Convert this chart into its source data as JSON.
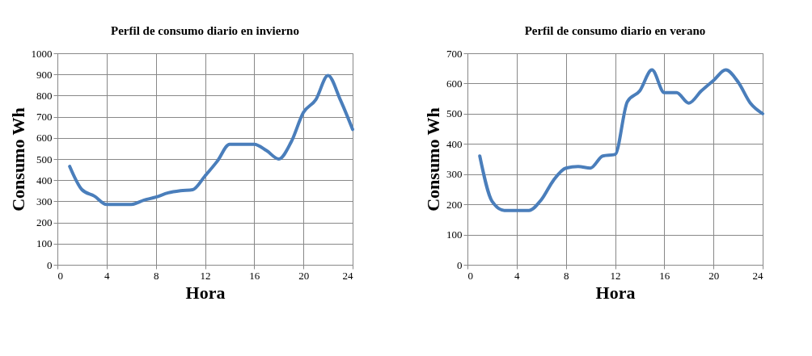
{
  "chart_data": [
    {
      "type": "line",
      "title": "Perfil de consumo diario en invierno",
      "xlabel": "Hora",
      "ylabel": "Consumo Wh",
      "x": [
        1,
        2,
        3,
        4,
        5,
        6,
        7,
        8,
        9,
        10,
        11,
        12,
        13,
        14,
        15,
        16,
        17,
        18,
        19,
        20,
        21,
        22,
        23,
        24
      ],
      "series": [
        {
          "color": "#4a7ebb",
          "values": [
            465,
            355,
            325,
            285,
            285,
            285,
            305,
            320,
            340,
            350,
            355,
            420,
            490,
            570,
            570,
            570,
            540,
            500,
            580,
            720,
            780,
            895,
            780,
            640
          ]
        }
      ],
      "xlim": [
        0,
        24
      ],
      "xticks": [
        0,
        4,
        8,
        12,
        16,
        20,
        24
      ],
      "ylim": [
        0,
        1000
      ],
      "yticks": [
        0,
        100,
        200,
        300,
        400,
        500,
        600,
        700,
        800,
        900,
        1000
      ],
      "grid": true
    },
    {
      "type": "line",
      "title": "Perfil de consumo diario en verano",
      "xlabel": "Hora",
      "ylabel": "Consumo Wh",
      "x": [
        1,
        2,
        3,
        4,
        5,
        6,
        7,
        8,
        9,
        10,
        11,
        12,
        13,
        14,
        15,
        16,
        17,
        18,
        19,
        20,
        21,
        22,
        23,
        24
      ],
      "series": [
        {
          "color": "#4a7ebb",
          "values": [
            360,
            210,
            180,
            180,
            180,
            215,
            280,
            320,
            325,
            320,
            360,
            365,
            540,
            575,
            645,
            570,
            570,
            535,
            575,
            610,
            645,
            605,
            535,
            500
          ]
        }
      ],
      "xlim": [
        0,
        24
      ],
      "xticks": [
        0,
        4,
        8,
        12,
        16,
        20,
        24
      ],
      "ylim": [
        0,
        700
      ],
      "yticks": [
        0,
        100,
        200,
        300,
        400,
        500,
        600,
        700
      ],
      "grid": true
    }
  ]
}
